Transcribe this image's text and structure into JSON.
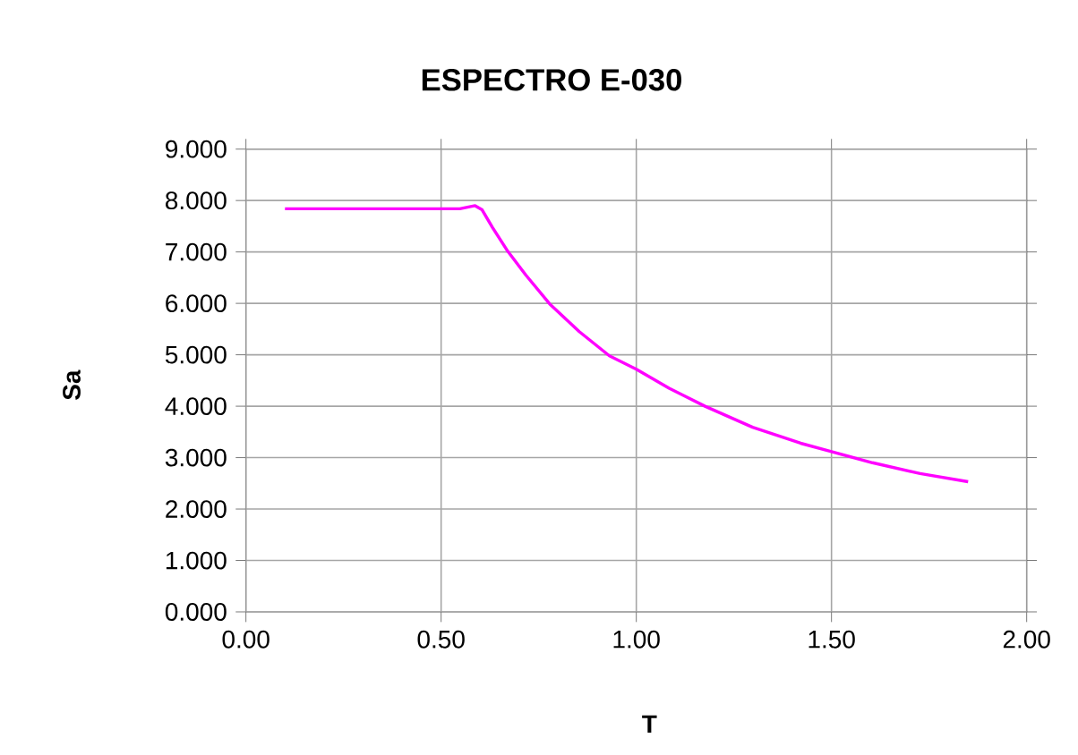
{
  "chart_data": {
    "type": "line",
    "title": "ESPECTRO E-030",
    "xlabel": "T",
    "ylabel": "Sa",
    "x": [
      0.1,
      0.548,
      0.587,
      0.605,
      0.632,
      0.671,
      0.717,
      0.778,
      0.854,
      0.931,
      1.0,
      1.084,
      1.176,
      1.298,
      1.421,
      1.498,
      1.605,
      1.727,
      1.85
    ],
    "series": [
      {
        "color": "#ff00ff",
        "values": [
          7.84,
          7.84,
          7.9,
          7.82,
          7.47,
          7.01,
          6.55,
          5.99,
          5.45,
          4.98,
          4.72,
          4.35,
          4.0,
          3.59,
          3.28,
          3.12,
          2.9,
          2.69,
          2.53
        ]
      }
    ],
    "xlim": [
      0,
      2
    ],
    "ylim": [
      0,
      9
    ],
    "xticks": [
      {
        "value": 0,
        "label": "0.00"
      },
      {
        "value": 0.5,
        "label": "0.50"
      },
      {
        "value": 1,
        "label": "1.00"
      },
      {
        "value": 1.5,
        "label": "1.50"
      },
      {
        "value": 2,
        "label": "2.00"
      }
    ],
    "yticks": [
      {
        "value": 0,
        "label": "0.000"
      },
      {
        "value": 1,
        "label": "1.000"
      },
      {
        "value": 2,
        "label": "2.000"
      },
      {
        "value": 3,
        "label": "3.000"
      },
      {
        "value": 4,
        "label": "4.000"
      },
      {
        "value": 5,
        "label": "5.000"
      },
      {
        "value": 6,
        "label": "6.000"
      },
      {
        "value": 7,
        "label": "7.000"
      },
      {
        "value": 8,
        "label": "8.000"
      },
      {
        "value": 9,
        "label": "9.000"
      }
    ],
    "grid": true,
    "marker": "none",
    "line_style": "solid"
  }
}
